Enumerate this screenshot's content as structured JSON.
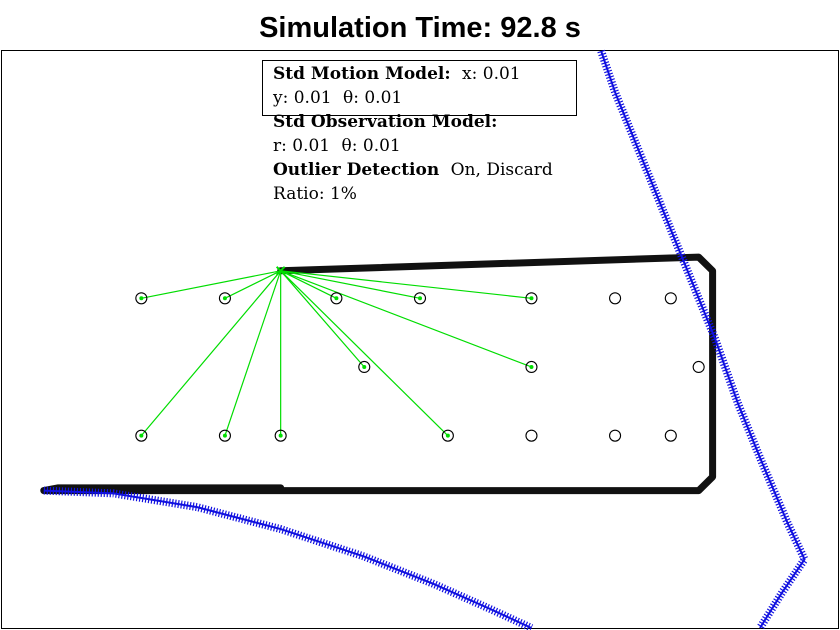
{
  "chart_data": {
    "type": "scatter",
    "title": "Simulation Time: 92.8 s",
    "xlim": [
      -14,
      16
    ],
    "ylim": [
      -9,
      12
    ],
    "grid": false,
    "colors": {
      "trajectory": "#1010e0",
      "path": "#111111",
      "landmark": "#000000",
      "observation": "#00dd00"
    },
    "info_box": {
      "motion_label": "Std Motion Model:",
      "motion_x": "x: 0.01",
      "motion_y": "y: 0.01",
      "motion_theta": "θ: 0.01",
      "observation_label": "Std Observation Model:",
      "observation_r": "r: 0.01",
      "observation_theta": "θ: 0.01",
      "outlier_label": "Outlier Detection",
      "outlier_state": "On, Discard",
      "ratio": "Ratio: 1%"
    },
    "robot": {
      "x": -4,
      "y": 4
    },
    "landmarks": [
      {
        "x": -9,
        "y": 3,
        "observed": true
      },
      {
        "x": -6,
        "y": 3,
        "observed": true
      },
      {
        "x": -2,
        "y": 3,
        "observed": true
      },
      {
        "x": 1,
        "y": 3,
        "observed": true
      },
      {
        "x": 5,
        "y": 3,
        "observed": true
      },
      {
        "x": 8,
        "y": 3,
        "observed": false
      },
      {
        "x": 10,
        "y": 3,
        "observed": false
      },
      {
        "x": -1,
        "y": 0.5,
        "observed": true
      },
      {
        "x": 5,
        "y": 0.5,
        "observed": true
      },
      {
        "x": 11,
        "y": 0.5,
        "observed": false
      },
      {
        "x": -9,
        "y": -2,
        "observed": true
      },
      {
        "x": -6,
        "y": -2,
        "observed": true
      },
      {
        "x": -4,
        "y": -2,
        "observed": true
      },
      {
        "x": 2,
        "y": -2,
        "observed": true
      },
      {
        "x": 5,
        "y": -2,
        "observed": false
      },
      {
        "x": 8,
        "y": -2,
        "observed": false
      },
      {
        "x": 10,
        "y": -2,
        "observed": false
      }
    ],
    "estimated_path": [
      [
        -4,
        4
      ],
      [
        11,
        4.5
      ],
      [
        11.5,
        4
      ],
      [
        11.5,
        -3.5
      ],
      [
        11,
        -4
      ],
      [
        -12.5,
        -4
      ],
      [
        -12,
        -3.9
      ],
      [
        -4,
        -3.9
      ]
    ],
    "true_trajectory": [
      [
        [
          7.5,
          12
        ],
        [
          8,
          10.5
        ],
        [
          8.6,
          9
        ],
        [
          9.2,
          7.5
        ],
        [
          10,
          5.5
        ],
        [
          10.8,
          3.5
        ],
        [
          11.6,
          1.5
        ],
        [
          12.4,
          -0.8
        ],
        [
          13.2,
          -2.8
        ],
        [
          14.2,
          -5.2
        ],
        [
          14.8,
          -6.5
        ],
        [
          14,
          -7.7
        ],
        [
          13.2,
          -9
        ]
      ],
      [
        [
          -12.5,
          -4
        ],
        [
          -10,
          -4.1
        ],
        [
          -7,
          -4.6
        ],
        [
          -4,
          -5.4
        ],
        [
          -1,
          -6.4
        ],
        [
          1.5,
          -7.4
        ],
        [
          3.5,
          -8.3
        ],
        [
          5,
          -9
        ]
      ]
    ]
  }
}
